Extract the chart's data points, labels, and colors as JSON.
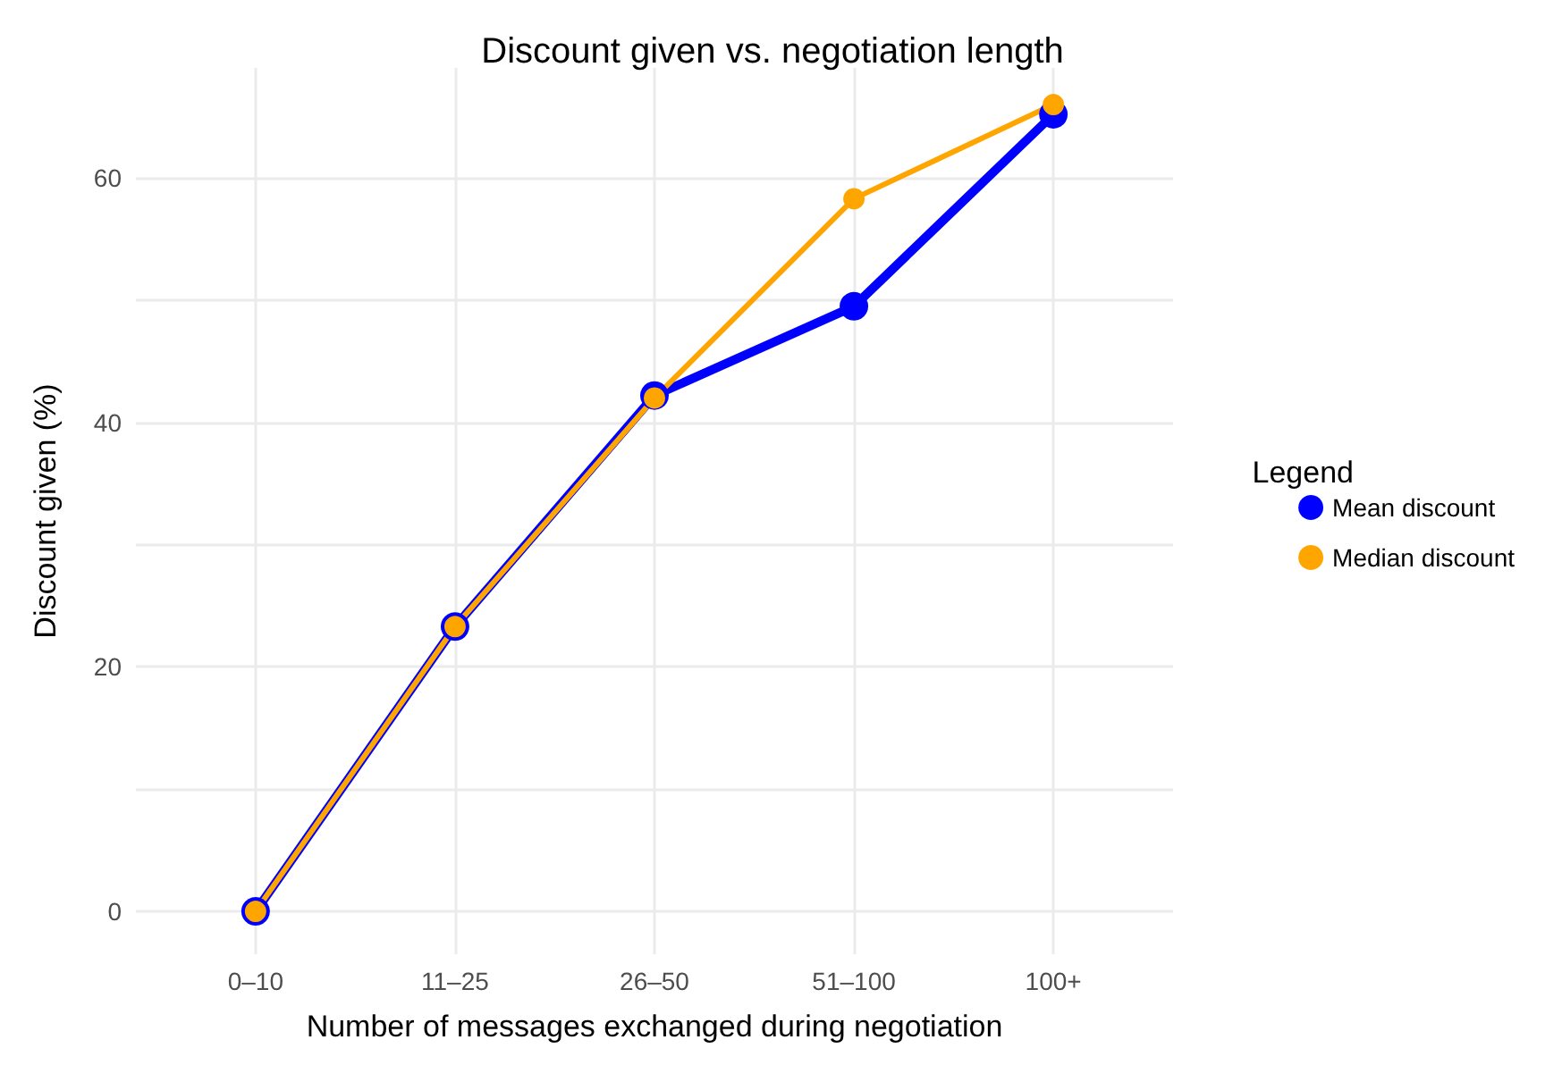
{
  "chart_data": {
    "type": "line",
    "title": "Discount given vs. negotiation length",
    "xlabel": "Number of messages exchanged during negotiation",
    "ylabel": "Discount given (%)",
    "legend_title": "Legend",
    "categories": [
      "0–10",
      "11–25",
      "26–50",
      "51–100",
      "100+"
    ],
    "series": [
      {
        "name": "Mean discount",
        "color": "#0000ff",
        "values": [
          0,
          23.3,
          42.2,
          49.5,
          65.2
        ]
      },
      {
        "name": "Median discount",
        "color": "#ffa500",
        "values": [
          0,
          23.3,
          42.0,
          58.3,
          66.0
        ]
      }
    ],
    "ylim": [
      -3.5,
      69
    ],
    "yticks": [
      0,
      {
        "value": 10,
        "label": null
      },
      20,
      {
        "value": 30,
        "label": null
      },
      40,
      {
        "value": 50,
        "label": null
      },
      60
    ],
    "grid": true,
    "legend": "right",
    "marker": "circle",
    "line_style": "solid"
  }
}
